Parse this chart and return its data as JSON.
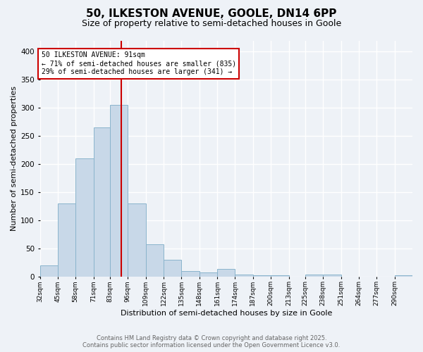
{
  "title1": "50, ILKESTON AVENUE, GOOLE, DN14 6PP",
  "title2": "Size of property relative to semi-detached houses in Goole",
  "xlabel": "Distribution of semi-detached houses by size in Goole",
  "ylabel": "Number of semi-detached properties",
  "bin_labels": [
    "32sqm",
    "45sqm",
    "58sqm",
    "71sqm",
    "83sqm",
    "96sqm",
    "109sqm",
    "122sqm",
    "135sqm",
    "148sqm",
    "161sqm",
    "174sqm",
    "187sqm",
    "200sqm",
    "213sqm",
    "225sqm",
    "238sqm",
    "251sqm",
    "264sqm",
    "277sqm",
    "290sqm"
  ],
  "bin_edges": [
    32,
    45,
    58,
    71,
    83,
    96,
    109,
    122,
    135,
    148,
    161,
    174,
    187,
    200,
    213,
    225,
    238,
    251,
    264,
    277,
    290,
    303
  ],
  "values": [
    20,
    130,
    210,
    265,
    305,
    130,
    57,
    30,
    10,
    7,
    13,
    3,
    2,
    2,
    0,
    3,
    3,
    0,
    0,
    0,
    2
  ],
  "bar_color": "#c8d8e8",
  "bar_edge_color": "#8ab4cc",
  "property_size": 91,
  "vline_color": "#cc0000",
  "annotation_text": "50 ILKESTON AVENUE: 91sqm\n← 71% of semi-detached houses are smaller (835)\n29% of semi-detached houses are larger (341) →",
  "annotation_box_color": "#ffffff",
  "annotation_box_edge": "#cc0000",
  "footer1": "Contains HM Land Registry data © Crown copyright and database right 2025.",
  "footer2": "Contains public sector information licensed under the Open Government Licence v3.0.",
  "ylim": [
    0,
    420
  ],
  "bg_color": "#eef2f7",
  "grid_color": "#ffffff",
  "title1_fontsize": 11,
  "title2_fontsize": 9,
  "xlabel_fontsize": 8,
  "ylabel_fontsize": 8
}
